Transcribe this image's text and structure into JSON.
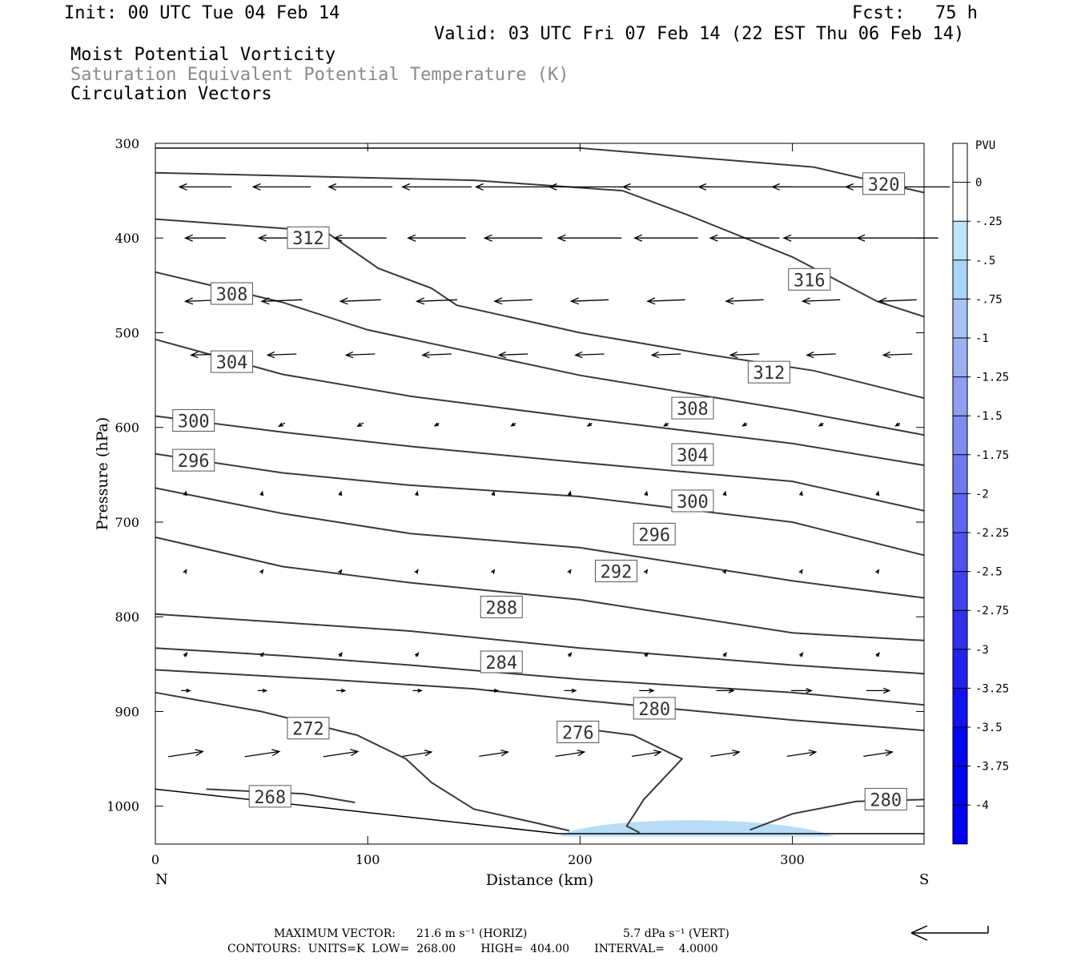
{
  "header": {
    "init": "Init: 00 UTC Tue 04 Feb 14",
    "fcst_label": "Fcst:",
    "fcst_value": "75 h",
    "valid": "Valid: 03 UTC Fri 07 Feb 14 (22 EST Thu 06 Feb 14)",
    "field1": "Moist Potential Vorticity",
    "field2": "Saturation Equivalent Potential Temperature (K)",
    "field3": "Circulation Vectors"
  },
  "footer": {
    "max_vector_label": "MAXIMUM VECTOR:",
    "max_horiz": "21.6 m s⁻¹ (HORIZ)",
    "max_vert": "5.7 dPa s⁻¹ (VERT)",
    "contours": "CONTOURS:  UNITS=K  LOW=  268.00       HIGH=  404.00       INTERVAL=    4.0000"
  },
  "colors": {
    "contour": "#3a3a3a",
    "vector": "#000000",
    "pv_fill": "#b8dcf6",
    "colorbar": [
      "#ffffff",
      "#ffffff",
      "#bfe3fa",
      "#aad4f7",
      "#a8c3f3",
      "#9ab0f1",
      "#8f9ef0",
      "#7f8bef",
      "#6e78ef",
      "#6066ef",
      "#5053ef",
      "#4141ef",
      "#3030ef",
      "#2222ef",
      "#1212f0",
      "#0505f3",
      "#0000f7"
    ]
  },
  "chart_data": {
    "type": "cross-section",
    "xlabel": "Distance (km)",
    "ylabel": "Pressure (hPa)",
    "xlim": [
      0,
      362
    ],
    "ylim": [
      300,
      1040
    ],
    "x_ticks": [
      0,
      100,
      200,
      300
    ],
    "y_ticks": [
      300,
      400,
      500,
      600,
      700,
      800,
      900,
      1000
    ],
    "x_end_labels": {
      "left": "N",
      "right": "S"
    },
    "colorbar": {
      "unit": "PVU",
      "labels": [
        "0",
        "-.25",
        "-.5",
        "-.75",
        "-1",
        "-1.25",
        "-1.5",
        "-1.75",
        "-2",
        "-2.25",
        "-2.5",
        "-2.75",
        "-3",
        "-3.25",
        "-3.5",
        "-3.75",
        "-4"
      ]
    },
    "contours": [
      {
        "level": "320",
        "label_at": [
          343,
          343
        ],
        "points": [
          [
            0,
            305
          ],
          [
            200,
            305
          ],
          [
            310,
            325
          ],
          [
            362,
            352
          ]
        ]
      },
      {
        "level": "316",
        "label_at": [
          308,
          444
        ],
        "points": [
          [
            0,
            331
          ],
          [
            150,
            339
          ],
          [
            220,
            350
          ],
          [
            250,
            375
          ],
          [
            300,
            420
          ],
          [
            340,
            467
          ],
          [
            362,
            483
          ]
        ]
      },
      {
        "level": "312",
        "label_at": [
          73,
          400
        ],
        "points": [
          [
            0,
            380
          ],
          [
            80,
            393
          ],
          [
            105,
            432
          ],
          [
            130,
            453
          ],
          [
            142,
            471
          ],
          [
            200,
            500
          ],
          [
            260,
            523
          ],
          [
            310,
            540
          ],
          [
            362,
            569
          ]
        ]
      },
      {
        "level": "308",
        "label_at": [
          36,
          459
        ],
        "points": [
          [
            0,
            436
          ],
          [
            60,
            468
          ],
          [
            100,
            497
          ],
          [
            200,
            545
          ],
          [
            300,
            582
          ],
          [
            362,
            608
          ]
        ]
      },
      {
        "level": "304",
        "label_at": [
          36,
          531
        ],
        "points": [
          [
            0,
            507
          ],
          [
            60,
            544
          ],
          [
            120,
            567
          ],
          [
            200,
            590
          ],
          [
            300,
            617
          ],
          [
            362,
            640
          ]
        ]
      },
      {
        "level": "300",
        "label_at": [
          18,
          593
        ],
        "points": [
          [
            0,
            588
          ],
          [
            60,
            605
          ],
          [
            120,
            620
          ],
          [
            200,
            637
          ],
          [
            300,
            657
          ],
          [
            362,
            688
          ]
        ]
      },
      {
        "level": "296",
        "label_at": [
          18,
          635
        ],
        "points": [
          [
            0,
            628
          ],
          [
            60,
            648
          ],
          [
            120,
            661
          ],
          [
            200,
            673
          ],
          [
            300,
            700
          ],
          [
            362,
            735
          ]
        ]
      },
      {
        "level": "292",
        "label_at": [
          0,
          0
        ],
        "points": [
          [
            0,
            664
          ],
          [
            60,
            691
          ],
          [
            120,
            712
          ],
          [
            200,
            727
          ],
          [
            300,
            762
          ],
          [
            362,
            780
          ]
        ]
      },
      {
        "level": "288",
        "label_at": [
          0,
          0
        ],
        "points": [
          [
            0,
            716
          ],
          [
            60,
            747
          ],
          [
            120,
            764
          ],
          [
            200,
            782
          ],
          [
            300,
            817
          ],
          [
            362,
            825
          ]
        ]
      },
      {
        "level": "284",
        "label_at": [
          0,
          0
        ],
        "points": [
          [
            0,
            797
          ],
          [
            60,
            806
          ],
          [
            120,
            815
          ],
          [
            200,
            833
          ],
          [
            300,
            851
          ],
          [
            362,
            860
          ]
        ]
      },
      {
        "level": "280",
        "label_at": [
          0,
          0
        ],
        "points": [
          [
            0,
            833
          ],
          [
            60,
            841
          ],
          [
            120,
            851
          ],
          [
            200,
            866
          ],
          [
            300,
            880
          ],
          [
            362,
            893
          ]
        ]
      },
      {
        "level": "276",
        "label_at": [
          0,
          0
        ],
        "points": [
          [
            0,
            856
          ],
          [
            80,
            866
          ],
          [
            150,
            876
          ],
          [
            200,
            888
          ],
          [
            300,
            909
          ],
          [
            362,
            920
          ]
        ]
      },
      {
        "level": "272",
        "label_at": [
          0,
          0
        ],
        "points": [
          [
            0,
            880
          ],
          [
            50,
            900
          ],
          [
            95,
            925
          ],
          [
            118,
            950
          ],
          [
            130,
            975
          ],
          [
            150,
            1003
          ],
          [
            180,
            1018
          ],
          [
            195,
            1026
          ]
        ]
      },
      {
        "level": "268",
        "label_at": [
          0,
          0
        ],
        "points": [
          [
            24,
            982
          ],
          [
            70,
            987
          ],
          [
            94,
            996
          ]
        ]
      },
      {
        "level": "276b",
        "label_at": [
          0,
          0
        ],
        "points": [
          [
            194,
            916
          ],
          [
            225,
            925
          ],
          [
            248,
            950
          ],
          [
            230,
            993
          ],
          [
            222,
            1021
          ],
          [
            228,
            1028
          ]
        ]
      },
      {
        "level": "280b",
        "label_at": [
          0,
          0
        ],
        "points": [
          [
            280,
            1025
          ],
          [
            300,
            1008
          ],
          [
            330,
            995
          ],
          [
            362,
            993
          ]
        ]
      }
    ],
    "contour_labels": [
      {
        "text": "320",
        "x": 343,
        "p": 343
      },
      {
        "text": "316",
        "x": 308,
        "p": 444
      },
      {
        "text": "312",
        "x": 72,
        "p": 400
      },
      {
        "text": "312",
        "x": 289,
        "p": 542
      },
      {
        "text": "308",
        "x": 36,
        "p": 459
      },
      {
        "text": "308",
        "x": 253,
        "p": 580
      },
      {
        "text": "304",
        "x": 36,
        "p": 531
      },
      {
        "text": "304",
        "x": 253,
        "p": 629
      },
      {
        "text": "300",
        "x": 18,
        "p": 593
      },
      {
        "text": "300",
        "x": 253,
        "p": 678
      },
      {
        "text": "296",
        "x": 18,
        "p": 635
      },
      {
        "text": "296",
        "x": 235,
        "p": 713
      },
      {
        "text": "292",
        "x": 217,
        "p": 752
      },
      {
        "text": "288",
        "x": 163,
        "p": 790
      },
      {
        "text": "284",
        "x": 163,
        "p": 848
      },
      {
        "text": "280",
        "x": 235,
        "p": 897
      },
      {
        "text": "276",
        "x": 199,
        "p": 922
      },
      {
        "text": "272",
        "x": 72,
        "p": 918
      },
      {
        "text": "268",
        "x": 54,
        "p": 990
      },
      {
        "text": "280",
        "x": 344,
        "p": 993
      }
    ],
    "pv_region": {
      "min_pv": "-0.25",
      "x": [
        190,
        320
      ],
      "p_top": 1010,
      "p_bottom": 1032
    },
    "vector_rows": [
      {
        "p": 346,
        "u": -1.0,
        "v": 0.0,
        "len": [
          18,
          20,
          22,
          24,
          26,
          28,
          30,
          32,
          34,
          36
        ]
      },
      {
        "p": 400,
        "u": -1.0,
        "v": 0.0,
        "len": [
          14,
          16,
          18,
          20,
          20,
          22,
          22,
          24,
          26,
          28
        ]
      },
      {
        "p": 466,
        "u": -1.0,
        "v": 0.04,
        "len": [
          14,
          14,
          14,
          14,
          13,
          13,
          13,
          13,
          13,
          13
        ]
      },
      {
        "p": 523,
        "u": -1.0,
        "v": 0.04,
        "len": [
          10,
          10,
          10,
          10,
          10,
          10,
          10,
          10,
          10,
          10
        ]
      },
      {
        "p": 597,
        "u": -0.5,
        "v": 0.3,
        "len": [
          4,
          4,
          4,
          3,
          3,
          3,
          3,
          3,
          3,
          3
        ]
      },
      {
        "p": 670,
        "u": 0.1,
        "v": -0.4,
        "len": [
          3,
          3,
          3,
          3,
          3,
          3,
          3,
          3,
          3,
          3
        ]
      },
      {
        "p": 752,
        "u": 0.2,
        "v": -0.3,
        "len": [
          3,
          3,
          3,
          3,
          3,
          3,
          3,
          3,
          3,
          3
        ]
      },
      {
        "p": 840,
        "u": 0.3,
        "v": -0.4,
        "len": [
          3,
          3,
          3,
          3,
          3,
          3,
          3,
          3,
          3,
          3
        ]
      },
      {
        "p": 878,
        "u": 1.0,
        "v": 0.0,
        "len": [
          3,
          3,
          3,
          3,
          3,
          4,
          5,
          6,
          7,
          8
        ]
      },
      {
        "p": 945,
        "u": 1.0,
        "v": -0.15,
        "len": [
          12,
          12,
          12,
          10,
          10,
          10,
          10,
          10,
          10,
          10
        ]
      }
    ]
  }
}
